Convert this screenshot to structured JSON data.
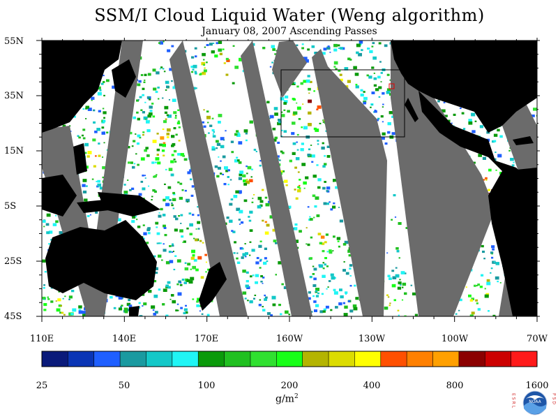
{
  "title": "SSM/I Cloud Liquid Water (Weng algorithm)",
  "subtitle": "January 08, 2007  Ascending Passes",
  "lat_labels": [
    "55N",
    "35N",
    "15N",
    "5S",
    "25S",
    "45S"
  ],
  "lon_labels": [
    "110E",
    "140E",
    "170E",
    "160W",
    "130W",
    "100W",
    "70W"
  ],
  "colorbar": {
    "colors": [
      "#0a1a7a",
      "#0a35b5",
      "#1f5fff",
      "#1a9aa0",
      "#13c8c8",
      "#20f5f5",
      "#0a9a0a",
      "#20c020",
      "#30e030",
      "#18ff18",
      "#b4b400",
      "#dcdc00",
      "#ffff00",
      "#ff5000",
      "#ff8000",
      "#ffa000",
      "#8b0000",
      "#cc0000",
      "#ff1a1a"
    ],
    "tick_labels": [
      "25",
      "50",
      "100",
      "200",
      "400",
      "800",
      "1600"
    ],
    "unit": "g/m",
    "unit_sup": "2"
  },
  "logo": {
    "left_letters": "ESRL",
    "right_letters": "PSD",
    "center_text": "NOAA",
    "icon": "noaa-logo-icon"
  },
  "map_colors": {
    "land": "#000000",
    "no_data": "#6b6b6b",
    "ocean_clear": "#ffffff"
  }
}
